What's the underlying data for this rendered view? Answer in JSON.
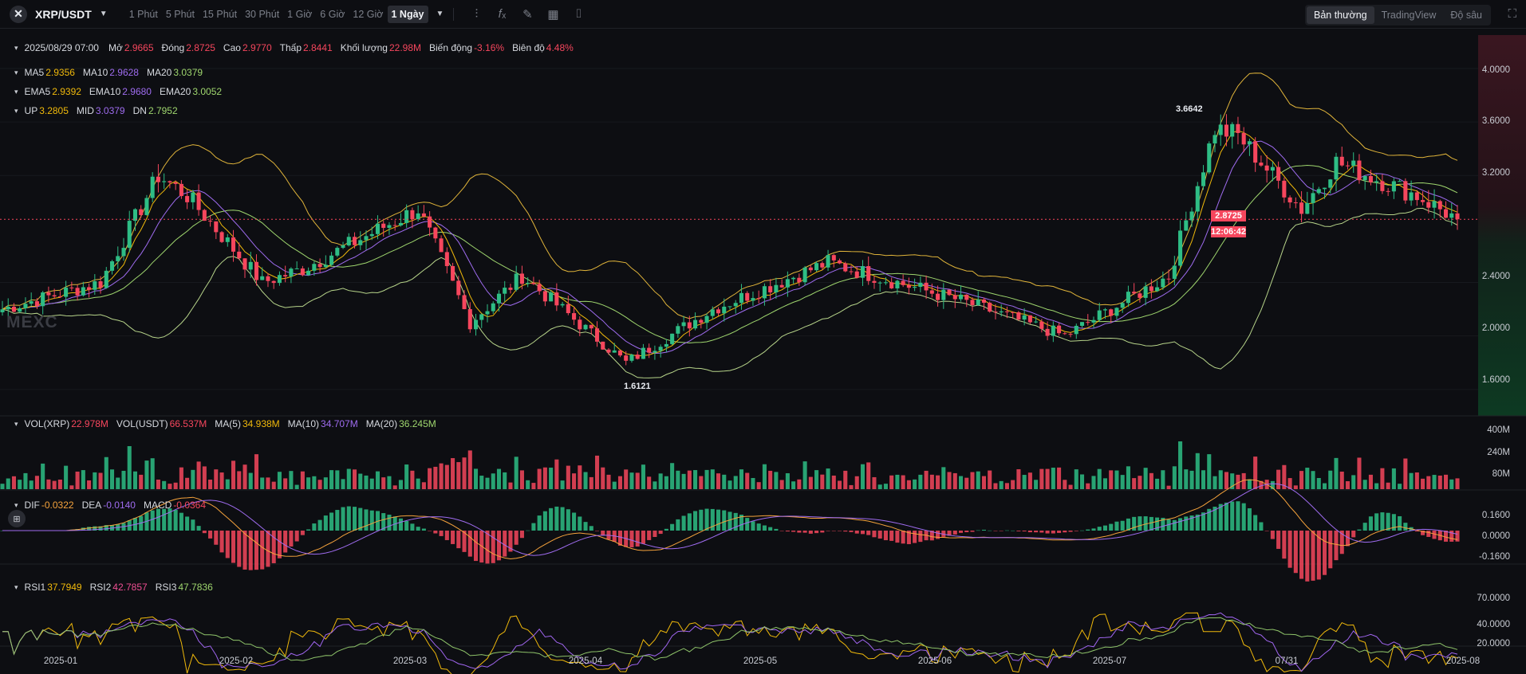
{
  "toolbar": {
    "pair": "XRP/USDT",
    "intervals": [
      "1 Phút",
      "5 Phút",
      "15 Phút",
      "30 Phút",
      "1 Giờ",
      "6 Giờ",
      "12 Giờ",
      "1 Ngày"
    ],
    "active_interval": "1 Ngày",
    "views": [
      "Bản thường",
      "TradingView",
      "Độ sâu"
    ],
    "active_view": "Bản thường"
  },
  "ohlc": {
    "date": "2025/08/29 07:00",
    "open_label": "Mở",
    "open": "2.9665",
    "close_label": "Đóng",
    "close": "2.8725",
    "high_label": "Cao",
    "high": "2.9770",
    "low_label": "Thấp",
    "low": "2.8441",
    "vol_label": "Khối lượng",
    "vol": "22.98M",
    "change_label": "Biến động",
    "change": "-3.16%",
    "amp_label": "Biên độ",
    "amp": "4.48%"
  },
  "ma": {
    "ma5_label": "MA5",
    "ma5": "2.9356",
    "ma10_label": "MA10",
    "ma10": "2.9628",
    "ma20_label": "MA20",
    "ma20": "3.0379"
  },
  "ema": {
    "ema5_label": "EMA5",
    "ema5": "2.9392",
    "ema10_label": "EMA10",
    "ema10": "2.9680",
    "ema20_label": "EMA20",
    "ema20": "3.0052"
  },
  "boll": {
    "up_label": "UP",
    "up": "3.2805",
    "mid_label": "MID",
    "mid": "3.0379",
    "dn_label": "DN",
    "dn": "2.7952"
  },
  "volume": {
    "vol_xrp_label": "VOL(XRP)",
    "vol_xrp": "22.978M",
    "vol_usdt_label": "VOL(USDT)",
    "vol_usdt": "66.537M",
    "ma5_label": "MA(5)",
    "ma5": "34.938M",
    "ma10_label": "MA(10)",
    "ma10": "34.707M",
    "ma20_label": "MA(20)",
    "ma20": "36.245M"
  },
  "macd": {
    "dif_label": "DIF",
    "dif": "-0.0322",
    "dea_label": "DEA",
    "dea": "-0.0140",
    "macd_label": "MACD",
    "macd": "-0.0364"
  },
  "rsi": {
    "rsi1_label": "RSI1",
    "rsi1": "37.7949",
    "rsi2_label": "RSI2",
    "rsi2": "42.7857",
    "rsi3_label": "RSI3",
    "rsi3": "47.7836"
  },
  "price_axis": [
    "4.0000",
    "3.6000",
    "3.2000",
    "2.4000",
    "2.0000",
    "1.6000"
  ],
  "volume_axis": [
    "400M",
    "240M",
    "80M"
  ],
  "macd_axis": [
    "0.1600",
    "0.0000",
    "-0.1600"
  ],
  "rsi_axis": [
    "70.0000",
    "40.0000",
    "20.0000"
  ],
  "current_price": "2.8725",
  "countdown": "12:06:42",
  "max_label": "3.6642",
  "min_label": "1.6121",
  "watermark": "MEXC",
  "dates": [
    "2025-01",
    "2025-02",
    "2025-03",
    "2025-04",
    "2025-05",
    "2025-06",
    "2025-07",
    "07/31",
    "2025-08"
  ],
  "colors": {
    "up": "#2ebd85",
    "down": "#f6465d",
    "ma5": "#f0b90b",
    "ma10": "#9f6cf0",
    "ma20": "#9fd66e",
    "boll": "#e0b43a"
  },
  "chart_data": {
    "type": "candlestick",
    "title": "XRP/USDT 1 Ngày",
    "x_range": [
      "2024-12-20",
      "2025-08-29"
    ],
    "y_range": [
      1.45,
      4.25
    ],
    "key_points": [
      {
        "date": "2024-12-20",
        "close": 2.2
      },
      {
        "date": "2025-01-06",
        "close": 2.4
      },
      {
        "date": "2025-01-16",
        "close": 3.2
      },
      {
        "date": "2025-01-21",
        "close": 3.05
      },
      {
        "date": "2025-02-03",
        "close": 2.4
      },
      {
        "date": "2025-02-10",
        "close": 2.5
      },
      {
        "date": "2025-03-02",
        "close": 2.95
      },
      {
        "date": "2025-03-11",
        "close": 2.1
      },
      {
        "date": "2025-03-20",
        "close": 2.45
      },
      {
        "date": "2025-04-07",
        "close": 1.8
      },
      {
        "date": "2025-04-22",
        "close": 2.2
      },
      {
        "date": "2025-05-12",
        "close": 2.55
      },
      {
        "date": "2025-06-05",
        "close": 2.25
      },
      {
        "date": "2025-06-22",
        "close": 2.0
      },
      {
        "date": "2025-07-10",
        "close": 2.45
      },
      {
        "date": "2025-07-18",
        "close": 3.55
      },
      {
        "date": "2025-07-22",
        "close": 3.5
      },
      {
        "date": "2025-08-02",
        "close": 2.95
      },
      {
        "date": "2025-08-08",
        "close": 3.3
      },
      {
        "date": "2025-08-22",
        "close": 3.05
      },
      {
        "date": "2025-08-29",
        "close": 2.8725
      }
    ],
    "annotations": [
      {
        "label": "3.6642",
        "type": "max"
      },
      {
        "label": "1.6121",
        "type": "min"
      }
    ]
  }
}
